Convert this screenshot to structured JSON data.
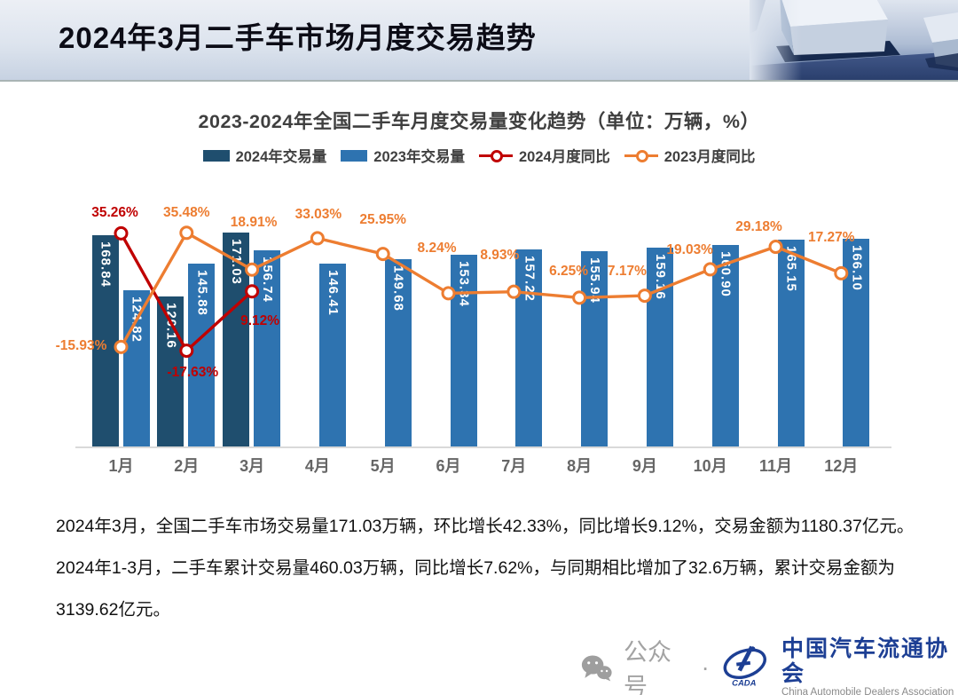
{
  "header": {
    "title": "2024年3月二手车市场月度交易趋势"
  },
  "chart": {
    "title": "2023-2024年全国二手车月度交易量变化趋势（单位：万辆，%）"
  },
  "chart_data": {
    "type": "bar+line",
    "title": "2023-2024年全国二手车月度交易量变化趋势（单位：万辆，%）",
    "unit": "万辆，%",
    "categories": [
      "1月",
      "2月",
      "3月",
      "4月",
      "5月",
      "6月",
      "7月",
      "8月",
      "9月",
      "10月",
      "11月",
      "12月"
    ],
    "bar_ylim": [
      0,
      200
    ],
    "line_ylim_pct": [
      -20,
      40
    ],
    "grid": false,
    "legend_position": "top",
    "series": [
      {
        "name": "2024年交易量",
        "type": "bar",
        "color": "#1F4E6E",
        "values": [
          168.84,
          120.16,
          171.03,
          null,
          null,
          null,
          null,
          null,
          null,
          null,
          null,
          null
        ],
        "labels": [
          "168.84",
          "120.16",
          "171.03"
        ]
      },
      {
        "name": "2023年交易量",
        "type": "bar",
        "color": "#2E73B0",
        "values": [
          124.82,
          145.88,
          156.74,
          146.41,
          149.68,
          153.34,
          157.22,
          155.94,
          159.16,
          160.9,
          165.15,
          166.1
        ],
        "labels": [
          "124.82",
          "145.88",
          "156.74",
          "146.41",
          "149.68",
          "153.34",
          "157.22",
          "155.94",
          "159.16",
          "160.90",
          "165.15",
          "166.10"
        ]
      },
      {
        "name": "2024月度同比",
        "type": "line",
        "color": "#C00000",
        "values": [
          35.26,
          -17.63,
          9.12,
          null,
          null,
          null,
          null,
          null,
          null,
          null,
          null,
          null
        ],
        "labels": [
          "35.26%",
          "-17.63%",
          "9.12%"
        ]
      },
      {
        "name": "2023月度同比",
        "type": "line",
        "color": "#ED7D31",
        "values": [
          -15.93,
          35.48,
          18.91,
          33.03,
          25.95,
          8.24,
          8.93,
          6.25,
          7.17,
          19.03,
          29.18,
          17.27
        ],
        "labels": [
          "-15.93%",
          "35.48%",
          "18.91%",
          "33.03%",
          "25.95%",
          "8.24%",
          "8.93%",
          "6.25%",
          "7.17%",
          "19.03%",
          "29.18%",
          "17.27%"
        ]
      }
    ]
  },
  "summary": {
    "paragraphs": [
      "2024年3月，全国二手车市场交易量171.03万辆，环比增长42.33%，同比增长9.12%，交易金额为1180.37亿元。",
      "2024年1-3月，二手车累计交易量460.03万辆，同比增长7.62%，与同期相比增加了32.6万辆，累计交易金额为3139.62亿元。"
    ]
  },
  "footer": {
    "wechat_label": "公众号",
    "separator": "·",
    "org_name_cn": "中国汽车流通协会",
    "org_name_en": "China Automobile Dealers Association",
    "logo_text": "CADA"
  }
}
